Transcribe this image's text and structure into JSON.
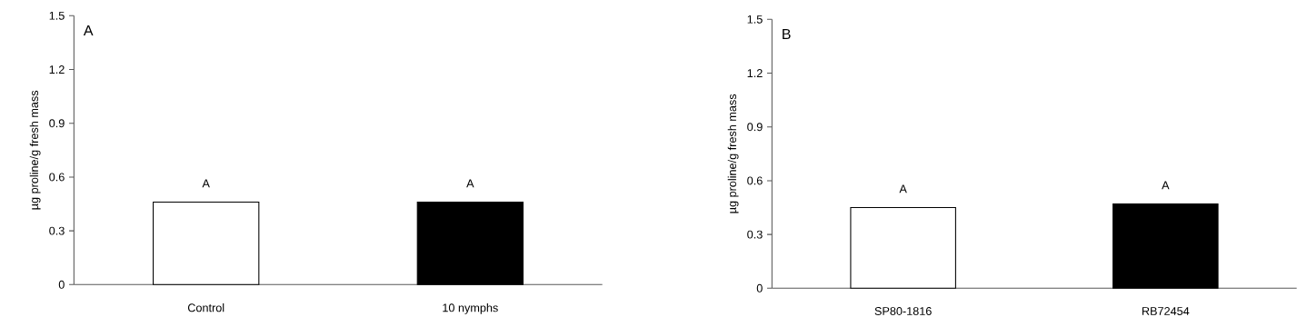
{
  "chart_data": [
    {
      "type": "bar",
      "ylabel": "µg proline/g fresh mass",
      "categories": [
        "Control",
        "10 nymphs"
      ],
      "values": [
        0.46,
        0.46
      ],
      "colors": [
        "#ffffff",
        "#000000"
      ],
      "ylim": [
        0,
        1.5
      ],
      "yticks": [
        0,
        0.3,
        0.6,
        0.9,
        1.2,
        1.5
      ],
      "annotations": [
        "A",
        {
          "text": "A",
          "x": "Control",
          "y": 0.46
        },
        {
          "text": "A",
          "x": "10 nymphs",
          "y": 0.46
        }
      ]
    },
    {
      "type": "bar",
      "ylabel": "µg proline/g fresh mass",
      "categories": [
        "SP80-1816",
        "RB72454"
      ],
      "values": [
        0.45,
        0.47
      ],
      "colors": [
        "#ffffff",
        "#000000"
      ],
      "ylim": [
        0,
        1.5
      ],
      "yticks": [
        0,
        0.3,
        0.6,
        0.9,
        1.2,
        1.5
      ],
      "annotations": [
        "B",
        {
          "text": "A",
          "x": "SP80-1816",
          "y": 0.45
        },
        {
          "text": "A",
          "x": "RB72454",
          "y": 0.47
        }
      ]
    }
  ]
}
